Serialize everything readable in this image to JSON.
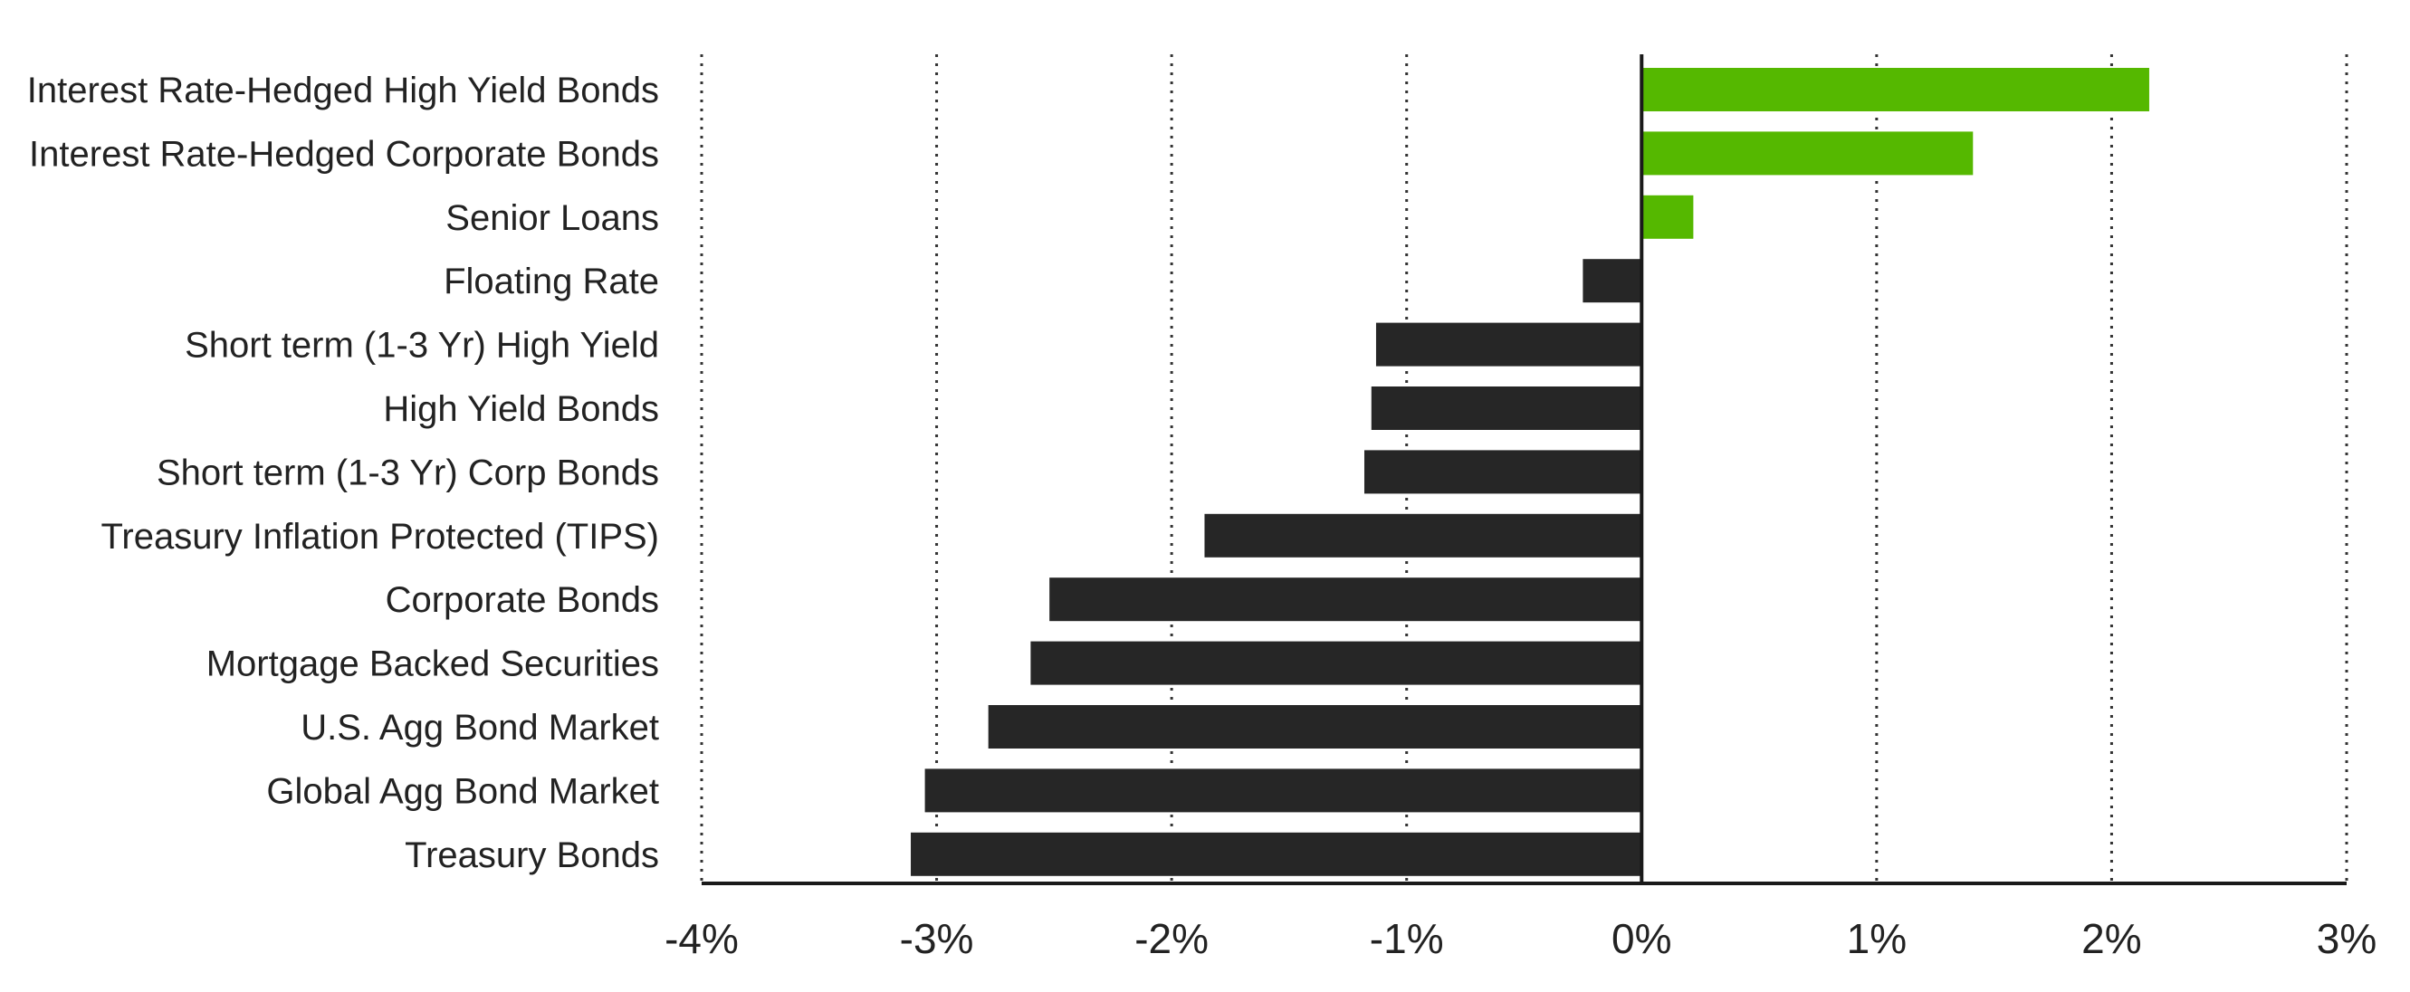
{
  "chart_data": {
    "type": "bar",
    "orientation": "horizontal",
    "title": "",
    "xlabel": "",
    "ylabel": "",
    "categories": [
      "Interest Rate-Hedged High Yield Bonds",
      "Interest Rate-Hedged Corporate Bonds",
      "Senior Loans",
      "Floating Rate",
      "Short term (1-3 Yr) High Yield",
      "High Yield Bonds",
      "Short term (1-3 Yr) Corp Bonds",
      "Treasury Inflation Protected (TIPS)",
      "Corporate Bonds",
      "Mortgage Backed Securities",
      "U.S. Agg Bond Market",
      "Global Agg Bond Market",
      "Treasury Bonds"
    ],
    "values": [
      2.16,
      1.41,
      0.22,
      -0.25,
      -1.13,
      -1.15,
      -1.18,
      -1.86,
      -2.52,
      -2.6,
      -2.78,
      -3.05,
      -3.11
    ],
    "xlim": [
      -4,
      3
    ],
    "xticks": [
      "-4%",
      "-3%",
      "-2%",
      "-1%",
      "0%",
      "1%",
      "2%",
      "3%"
    ],
    "grid": "vertical dotted",
    "legend": "none",
    "colors": {
      "positive": "#55b800",
      "negative": "#262626",
      "axis": "#1a1a1a",
      "grid": "#333333",
      "text": "#222222"
    }
  }
}
